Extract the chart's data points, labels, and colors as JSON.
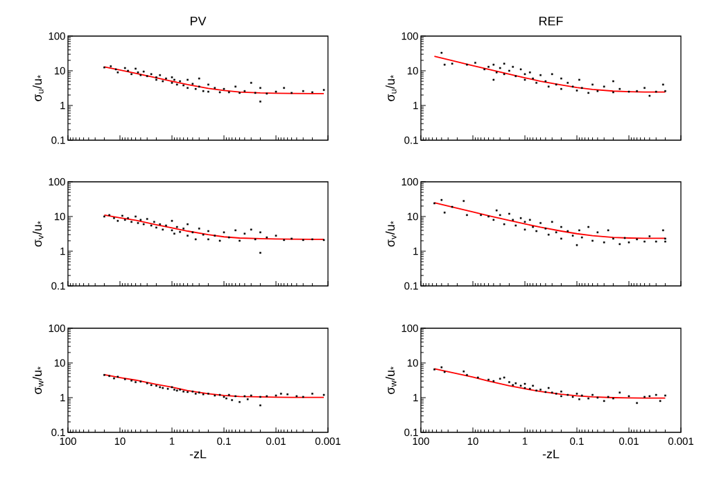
{
  "chart_data": [
    {
      "type": "scatter",
      "title": "PV",
      "ylabel": "σ$_{u}$/u$_{*}$",
      "log": "xy",
      "xlim": [
        100,
        0.001
      ],
      "ylim": [
        0.1,
        100
      ],
      "xticks": [
        100,
        10,
        1,
        0.1,
        0.01,
        0.001
      ],
      "yticks": [
        0.1,
        1,
        10,
        100
      ],
      "tick_labels": "y",
      "marker": "square",
      "series": [
        {
          "color": "#000000",
          "x": [
            20,
            15,
            12,
            11,
            8,
            7,
            6,
            5,
            4.5,
            4,
            3.5,
            3,
            2.5,
            2,
            2,
            1.7,
            1.5,
            1.3,
            1,
            1,
            0.9,
            0.8,
            0.7,
            0.6,
            0.5,
            0.5,
            0.4,
            0.35,
            0.3,
            0.3,
            0.25,
            0.2,
            0.2,
            0.15,
            0.12,
            0.1,
            0.08,
            0.06,
            0.05,
            0.04,
            0.03,
            0.025,
            0.02,
            0.02,
            0.015,
            0.01,
            0.007,
            0.005,
            0.003,
            0.002,
            0.0012
          ],
          "values": [
            12.5,
            13.5,
            11,
            9,
            12,
            10,
            8,
            11.5,
            9,
            7.5,
            9.5,
            7,
            8,
            6.5,
            5.5,
            7.5,
            5,
            6,
            6.5,
            4.5,
            5.5,
            4,
            5,
            3.8,
            5.5,
            3.2,
            4.2,
            3,
            6,
            3.5,
            2.6,
            4,
            2.5,
            3.2,
            2.4,
            3,
            2.4,
            3.5,
            2.3,
            2.6,
            4.5,
            2.3,
            1.3,
            3.2,
            2.2,
            2.5,
            3.2,
            2.3,
            2.6,
            2.4,
            2.8
          ]
        },
        {
          "type": "line",
          "color": "#ff0000",
          "x": [
            20,
            10,
            5,
            2,
            1,
            0.5,
            0.2,
            0.1,
            0.05,
            0.02,
            0.01,
            0.005,
            0.002,
            0.0012
          ],
          "marker": "none",
          "values": [
            13,
            10.5,
            8.5,
            6.3,
            5,
            4,
            3.1,
            2.7,
            2.45,
            2.3,
            2.25,
            2.22,
            2.2,
            2.2
          ]
        }
      ]
    },
    {
      "type": "scatter",
      "title": "REF",
      "ylabel": "σ$_{u}$/u$_{*}$",
      "log": "xy",
      "xlim": [
        100,
        0.001
      ],
      "ylim": [
        0.1,
        100
      ],
      "xticks": [
        100,
        10,
        1,
        0.1,
        0.01,
        0.001
      ],
      "yticks": [
        0.1,
        1,
        10,
        100
      ],
      "tick_labels": "y",
      "marker": "square",
      "series": [
        {
          "color": "#000000",
          "x": [
            40,
            35,
            25,
            13,
            9,
            6,
            5,
            4,
            4,
            3.5,
            3,
            2.5,
            2.5,
            2,
            1.7,
            1.5,
            1.2,
            1,
            1,
            0.8,
            0.7,
            0.6,
            0.5,
            0.4,
            0.35,
            0.3,
            0.25,
            0.2,
            0.2,
            0.15,
            0.12,
            0.1,
            0.09,
            0.08,
            0.06,
            0.05,
            0.04,
            0.03,
            0.02,
            0.02,
            0.015,
            0.01,
            0.007,
            0.005,
            0.004,
            0.003,
            0.0022,
            0.002
          ],
          "values": [
            33,
            15,
            16,
            15,
            17,
            11,
            13,
            15,
            5.5,
            9,
            12,
            16,
            8,
            10,
            13,
            7,
            11,
            8,
            5.5,
            9,
            6,
            4.5,
            7.5,
            5,
            3.5,
            8,
            4,
            6,
            3,
            4.5,
            3.5,
            2.7,
            5.5,
            3.2,
            2.3,
            4,
            2.6,
            3.5,
            5,
            2.4,
            3,
            2.5,
            2.6,
            3.2,
            1.9,
            2.5,
            4,
            2.6
          ]
        },
        {
          "type": "line",
          "color": "#ff0000",
          "x": [
            55,
            30,
            10,
            5,
            2,
            1,
            0.5,
            0.2,
            0.1,
            0.05,
            0.02,
            0.01,
            0.005,
            0.002
          ],
          "marker": "none",
          "values": [
            26,
            21,
            14,
            11,
            8,
            6.3,
            5,
            3.9,
            3.3,
            2.9,
            2.6,
            2.5,
            2.45,
            2.45
          ]
        }
      ]
    },
    {
      "type": "scatter",
      "ylabel": "σ$_{v}$/u$_{*}$",
      "log": "xy",
      "xlim": [
        100,
        0.001
      ],
      "ylim": [
        0.1,
        100
      ],
      "xticks": [
        100,
        10,
        1,
        0.1,
        0.01,
        0.001
      ],
      "yticks": [
        0.1,
        1,
        10,
        100
      ],
      "tick_labels": "y",
      "marker": "square",
      "series": [
        {
          "color": "#000000",
          "x": [
            20,
            16,
            13,
            11,
            9,
            8,
            7,
            6,
            5,
            4.5,
            4,
            3.5,
            3,
            2.5,
            2.2,
            2,
            1.7,
            1.5,
            1.3,
            1,
            1,
            0.9,
            0.8,
            0.7,
            0.6,
            0.5,
            0.5,
            0.4,
            0.35,
            0.3,
            0.25,
            0.2,
            0.2,
            0.15,
            0.12,
            0.1,
            0.08,
            0.06,
            0.05,
            0.04,
            0.03,
            0.025,
            0.02,
            0.02,
            0.015,
            0.01,
            0.007,
            0.005,
            0.003,
            0.002,
            0.0012
          ],
          "values": [
            10,
            11,
            9,
            7.5,
            10.5,
            8,
            9,
            7,
            10,
            6.5,
            8,
            6,
            8.5,
            5.5,
            7,
            4.8,
            6,
            4.2,
            5.5,
            7.5,
            4,
            3.2,
            5,
            3.6,
            4.5,
            2.8,
            6,
            3.5,
            2.2,
            4.5,
            3,
            2.2,
            3.8,
            2.8,
            2,
            3.5,
            2.5,
            4,
            2,
            3.2,
            4.2,
            2.2,
            0.9,
            3.5,
            2.5,
            2.8,
            2.1,
            2.3,
            2.1,
            2.2,
            2.1
          ]
        },
        {
          "type": "line",
          "color": "#ff0000",
          "x": [
            20,
            10,
            5,
            2,
            1,
            0.5,
            0.2,
            0.1,
            0.05,
            0.02,
            0.01,
            0.005,
            0.002,
            0.0012
          ],
          "marker": "none",
          "values": [
            11,
            9.2,
            7.8,
            5.8,
            4.7,
            3.8,
            3.0,
            2.6,
            2.4,
            2.3,
            2.25,
            2.22,
            2.2,
            2.2
          ]
        }
      ]
    },
    {
      "type": "scatter",
      "ylabel": "σ$_{v}$/u$_{*}$",
      "log": "xy",
      "xlim": [
        100,
        0.001
      ],
      "ylim": [
        0.1,
        100
      ],
      "xticks": [
        100,
        10,
        1,
        0.1,
        0.01,
        0.001
      ],
      "yticks": [
        0.1,
        1,
        10,
        100
      ],
      "tick_labels": "y",
      "marker": "square",
      "series": [
        {
          "color": "#000000",
          "x": [
            55,
            40,
            35,
            25,
            15,
            13,
            7,
            5,
            4,
            3.5,
            3,
            2.5,
            2,
            1.7,
            1.5,
            1.2,
            1,
            1,
            0.8,
            0.7,
            0.6,
            0.5,
            0.4,
            0.35,
            0.3,
            0.25,
            0.2,
            0.2,
            0.15,
            0.12,
            0.1,
            0.09,
            0.08,
            0.06,
            0.05,
            0.04,
            0.03,
            0.025,
            0.02,
            0.015,
            0.012,
            0.01,
            0.007,
            0.005,
            0.004,
            0.003,
            0.0022,
            0.002,
            0.002
          ],
          "values": [
            24,
            30,
            13,
            19,
            28,
            11,
            11,
            10,
            8,
            15,
            11,
            6,
            12,
            8,
            5.5,
            9,
            7,
            4.2,
            8,
            5,
            3.8,
            6.5,
            4.5,
            3,
            7,
            3.5,
            5,
            2.3,
            3.8,
            2.8,
            1.5,
            4,
            2.5,
            5,
            2,
            3.5,
            1.8,
            4,
            2.3,
            1.6,
            2.4,
            1.8,
            2.2,
            1.9,
            2.7,
            1.9,
            4,
            2.3,
            1.9
          ]
        },
        {
          "type": "line",
          "color": "#ff0000",
          "x": [
            55,
            30,
            10,
            5,
            2,
            1,
            0.5,
            0.2,
            0.1,
            0.05,
            0.02,
            0.01,
            0.005,
            0.002
          ],
          "marker": "none",
          "values": [
            25,
            20,
            13.5,
            10.5,
            7.7,
            6.1,
            4.9,
            3.8,
            3.2,
            2.8,
            2.5,
            2.4,
            2.35,
            2.35
          ]
        }
      ]
    },
    {
      "type": "scatter",
      "xlabel": "-zL",
      "ylabel": "σ$_{w}$/u$_{*}$",
      "log": "xy",
      "xlim": [
        100,
        0.001
      ],
      "ylim": [
        0.1,
        100
      ],
      "xticks": [
        100,
        10,
        1,
        0.1,
        0.01,
        0.001
      ],
      "yticks": [
        0.1,
        1,
        10,
        100
      ],
      "marker": "square",
      "series": [
        {
          "color": "#000000",
          "x": [
            20,
            16,
            13,
            11,
            8,
            6,
            5,
            4,
            3,
            2.5,
            2,
            1.7,
            1.5,
            1.2,
            1,
            0.9,
            0.8,
            0.7,
            0.6,
            0.5,
            0.4,
            0.35,
            0.3,
            0.25,
            0.2,
            0.15,
            0.12,
            0.1,
            0.09,
            0.08,
            0.07,
            0.06,
            0.05,
            0.04,
            0.035,
            0.03,
            0.02,
            0.02,
            0.015,
            0.01,
            0.008,
            0.006,
            0.004,
            0.003,
            0.002,
            0.0012
          ],
          "values": [
            4.5,
            4.2,
            3.6,
            4,
            3.4,
            3.1,
            2.8,
            2.9,
            2.6,
            2.3,
            2.2,
            2.0,
            1.9,
            1.8,
            2.0,
            1.7,
            1.6,
            1.7,
            1.5,
            1.45,
            1.5,
            1.3,
            1.4,
            1.25,
            1.3,
            1.15,
            1.2,
            1.05,
            0.95,
            1.2,
            0.85,
            1.1,
            0.75,
            1.1,
            0.9,
            1.15,
            1.05,
            0.6,
            1.1,
            1.15,
            1.3,
            1.25,
            1.1,
            1.05,
            1.3,
            1.2
          ]
        },
        {
          "type": "line",
          "color": "#ff0000",
          "x": [
            20,
            10,
            5,
            2,
            1,
            0.5,
            0.2,
            0.1,
            0.05,
            0.02,
            0.01,
            0.005,
            0.002,
            0.0012
          ],
          "marker": "none",
          "values": [
            4.6,
            3.8,
            3.2,
            2.4,
            2.0,
            1.6,
            1.3,
            1.15,
            1.08,
            1.05,
            1.03,
            1.02,
            1.02,
            1.02
          ]
        }
      ]
    },
    {
      "type": "scatter",
      "xlabel": "-zL",
      "ylabel": "σ$_{w}$/u$_{*}$",
      "log": "xy",
      "xlim": [
        100,
        0.001
      ],
      "ylim": [
        0.1,
        100
      ],
      "xticks": [
        100,
        10,
        1,
        0.1,
        0.01,
        0.001
      ],
      "yticks": [
        0.1,
        1,
        10,
        100
      ],
      "marker": "square",
      "series": [
        {
          "color": "#000000",
          "x": [
            55,
            40,
            35,
            15,
            13,
            8,
            5,
            4,
            3,
            2.5,
            2,
            1.7,
            1.5,
            1.2,
            1,
            1,
            0.8,
            0.7,
            0.6,
            0.5,
            0.4,
            0.35,
            0.3,
            0.25,
            0.2,
            0.2,
            0.15,
            0.12,
            0.1,
            0.09,
            0.08,
            0.06,
            0.05,
            0.04,
            0.03,
            0.025,
            0.02,
            0.015,
            0.01,
            0.007,
            0.005,
            0.004,
            0.003,
            0.0025,
            0.002
          ],
          "values": [
            6.5,
            7.5,
            5.5,
            5.7,
            4.5,
            3.8,
            3.3,
            3.0,
            3.5,
            3.8,
            2.8,
            2.3,
            2.6,
            2.2,
            2.5,
            1.9,
            1.8,
            2.2,
            1.6,
            1.7,
            1.45,
            1.9,
            1.4,
            1.3,
            1.5,
            1.1,
            1.2,
            1.05,
            1.3,
            0.9,
            1.15,
            0.95,
            1.2,
            1.0,
            0.8,
            1.05,
            0.95,
            1.4,
            1.1,
            0.7,
            1.05,
            1.1,
            1.2,
            0.8,
            1.15
          ]
        },
        {
          "type": "line",
          "color": "#ff0000",
          "x": [
            55,
            30,
            10,
            5,
            2,
            1,
            0.5,
            0.2,
            0.1,
            0.05,
            0.02,
            0.01,
            0.005,
            0.002
          ],
          "marker": "none",
          "values": [
            6.8,
            5.6,
            3.9,
            3.0,
            2.2,
            1.8,
            1.5,
            1.25,
            1.13,
            1.05,
            1.0,
            0.98,
            0.97,
            0.97
          ]
        }
      ]
    }
  ]
}
